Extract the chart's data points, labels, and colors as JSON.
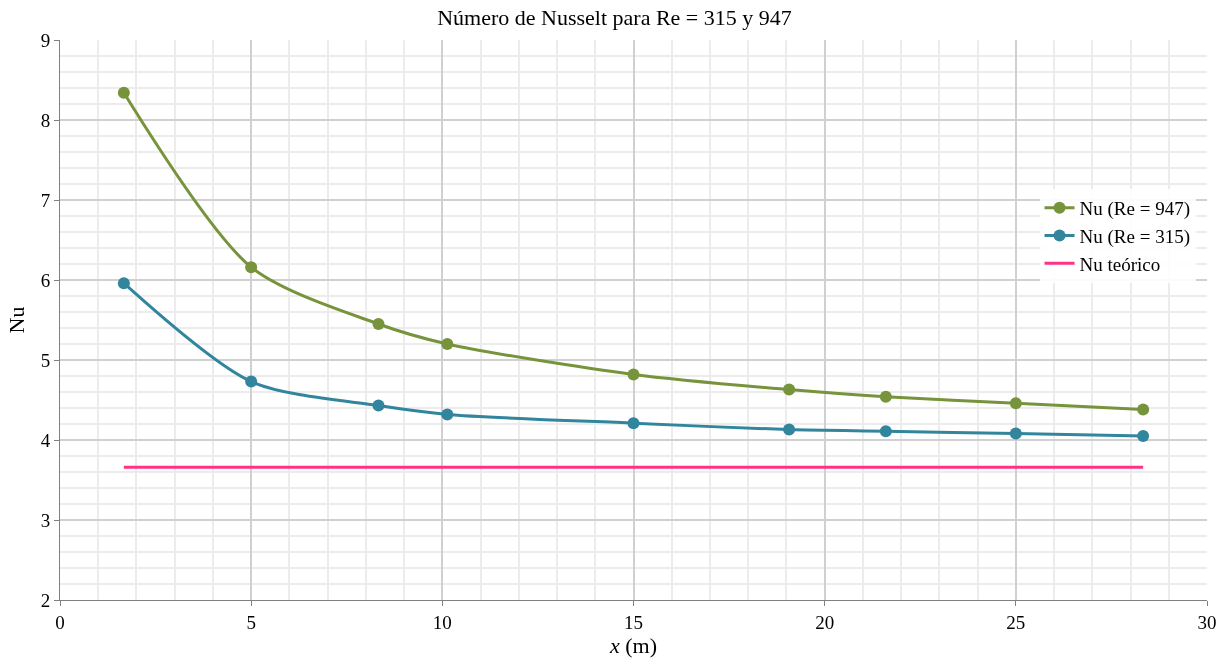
{
  "chart_data": {
    "type": "line",
    "title": "Número de Nusselt para Re = 315 y 947",
    "xlabel": "x (m)",
    "ylabel": "Nu",
    "xlim": [
      0,
      30
    ],
    "xticks": [
      0,
      5,
      10,
      15,
      20,
      25,
      30
    ],
    "ylim": [
      2,
      9
    ],
    "yticks": [
      2,
      3,
      4,
      5,
      6,
      7,
      8,
      9
    ],
    "grid": true,
    "legend": "right",
    "marker": "circle",
    "line_style": "solid",
    "series": [
      {
        "name": "Nu (Re = 947)",
        "color": "#77933c",
        "x": [
          1.67,
          5.0,
          8.33,
          10.13,
          15.0,
          19.07,
          21.6,
          25.0,
          28.33
        ],
        "values": [
          8.34,
          6.16,
          5.45,
          5.2,
          4.82,
          4.63,
          4.54,
          4.46,
          4.38
        ]
      },
      {
        "name": "Nu (Re = 315)",
        "color": "#31859c",
        "x": [
          1.67,
          5.0,
          8.33,
          10.13,
          15.0,
          19.07,
          21.6,
          25.0,
          28.33
        ],
        "values": [
          5.96,
          4.73,
          4.43,
          4.32,
          4.21,
          4.13,
          4.11,
          4.08,
          4.05
        ]
      },
      {
        "name": "Nu teórico",
        "color": "#ff3385",
        "marker": "none",
        "x": [
          1.67,
          28.33
        ],
        "values": [
          3.66,
          3.66
        ]
      }
    ]
  }
}
